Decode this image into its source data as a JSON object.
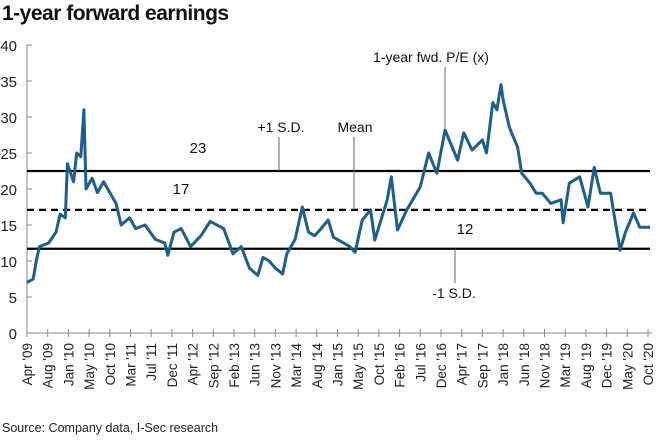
{
  "title": "1-year forward earnings",
  "source": "Source: Company data, I-Sec research",
  "colors": {
    "series": "#1d5f8c",
    "reference": "#000000",
    "axis": "#888888"
  },
  "chart_data": {
    "type": "line",
    "title": "1-year forward earnings",
    "xlabel": "",
    "ylabel": "",
    "ylim": [
      0,
      40
    ],
    "yticks": [
      0,
      5,
      10,
      15,
      20,
      25,
      30,
      35,
      40
    ],
    "grid": false,
    "x_categories": [
      "Apr '09",
      "Aug '09",
      "Jan '10",
      "May '10",
      "Oct '10",
      "Mar '11",
      "Jul '11",
      "Dec '11",
      "Apr '12",
      "Sep '12",
      "Feb '13",
      "Jun '13",
      "Nov '13",
      "Mar '14",
      "Aug '14",
      "Jan '15",
      "May '15",
      "Oct '15",
      "Feb '16",
      "Jul '16",
      "Dec '16",
      "Apr '17",
      "Sep '17",
      "Jan '18",
      "Jun '18",
      "Nov '18",
      "Mar '19",
      "Aug '19",
      "Dec '19",
      "May '20",
      "Oct '20"
    ],
    "x_units": "index into x_categories (fractional)",
    "series": [
      {
        "name": "1-year fwd. P/E (x)",
        "points": [
          [
            0,
            7
          ],
          [
            0.3,
            7.5
          ],
          [
            0.45,
            10
          ],
          [
            0.6,
            12
          ],
          [
            1.05,
            12.5
          ],
          [
            1.4,
            14
          ],
          [
            1.6,
            16.5
          ],
          [
            1.85,
            16
          ],
          [
            1.95,
            23.5
          ],
          [
            2.25,
            21
          ],
          [
            2.4,
            25
          ],
          [
            2.6,
            24.5
          ],
          [
            2.75,
            31
          ],
          [
            2.85,
            20
          ],
          [
            3.15,
            21.5
          ],
          [
            3.4,
            19.5
          ],
          [
            3.7,
            21
          ],
          [
            4.0,
            19.5
          ],
          [
            4.3,
            18
          ],
          [
            4.55,
            15
          ],
          [
            4.95,
            16
          ],
          [
            5.25,
            14.5
          ],
          [
            5.7,
            15
          ],
          [
            6.2,
            13
          ],
          [
            6.65,
            12.5
          ],
          [
            6.8,
            10.8
          ],
          [
            7.1,
            14
          ],
          [
            7.45,
            14.5
          ],
          [
            7.9,
            12
          ],
          [
            8.4,
            13.5
          ],
          [
            8.85,
            15.5
          ],
          [
            9.5,
            14.5
          ],
          [
            9.95,
            11
          ],
          [
            10.35,
            12
          ],
          [
            10.75,
            9
          ],
          [
            11.15,
            8
          ],
          [
            11.4,
            10.5
          ],
          [
            11.7,
            10
          ],
          [
            12.0,
            9
          ],
          [
            12.35,
            8.2
          ],
          [
            12.55,
            11
          ],
          [
            12.95,
            13
          ],
          [
            13.3,
            17.5
          ],
          [
            13.6,
            14
          ],
          [
            13.9,
            13.5
          ],
          [
            14.15,
            14.3
          ],
          [
            14.55,
            15.7
          ],
          [
            14.8,
            13.3
          ],
          [
            15.6,
            12
          ],
          [
            15.85,
            11.2
          ],
          [
            16.2,
            15.7
          ],
          [
            16.6,
            17.1
          ],
          [
            16.8,
            12.9
          ],
          [
            17.4,
            18.5
          ],
          [
            17.6,
            21.7
          ],
          [
            17.9,
            14.3
          ],
          [
            18.35,
            17.1
          ],
          [
            19.0,
            20.3
          ],
          [
            19.4,
            25
          ],
          [
            19.8,
            22.2
          ],
          [
            20.2,
            28.2
          ],
          [
            20.8,
            24
          ],
          [
            21.1,
            27.8
          ],
          [
            21.5,
            25.4
          ],
          [
            22.0,
            26.8
          ],
          [
            22.2,
            25
          ],
          [
            22.5,
            32
          ],
          [
            22.7,
            31
          ],
          [
            22.9,
            34.5
          ],
          [
            23.0,
            32.4
          ],
          [
            23.3,
            28.6
          ],
          [
            23.7,
            25.8
          ],
          [
            23.9,
            22.2
          ],
          [
            24.3,
            20.8
          ],
          [
            24.6,
            19.4
          ],
          [
            24.9,
            19.4
          ],
          [
            25.3,
            18
          ],
          [
            25.8,
            18.5
          ],
          [
            25.9,
            15.3
          ],
          [
            26.2,
            20.8
          ],
          [
            26.7,
            21.7
          ],
          [
            27.1,
            17.5
          ],
          [
            27.4,
            23
          ],
          [
            27.7,
            19.4
          ],
          [
            28.2,
            19.4
          ],
          [
            28.3,
            17.5
          ],
          [
            28.65,
            11.5
          ],
          [
            28.9,
            13.9
          ],
          [
            29.3,
            16.7
          ],
          [
            29.6,
            14.7
          ],
          [
            30.1,
            14.7
          ]
        ]
      }
    ],
    "reference_lines": [
      {
        "name": "+1 S.D.",
        "value": 22.5,
        "label": "23",
        "style": "solid"
      },
      {
        "name": "Mean",
        "value": 17.1,
        "label": "17",
        "style": "dashed"
      },
      {
        "name": "-1 S.D.",
        "value": 11.7,
        "label": "12",
        "style": "solid"
      }
    ],
    "annotations": [
      "+1 S.D.",
      "Mean",
      "1-year fwd. P/E (x)",
      "-1 S.D."
    ]
  }
}
